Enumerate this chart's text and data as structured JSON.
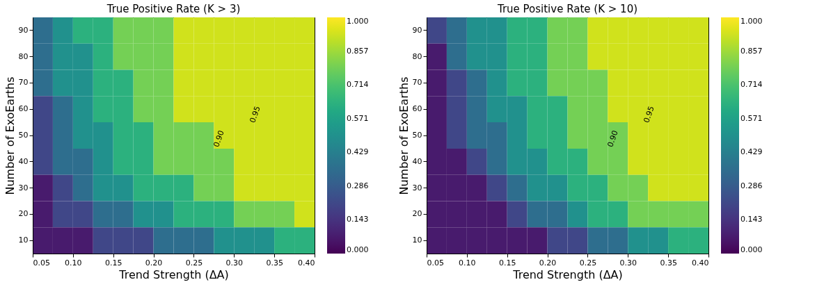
{
  "chart_data": [
    {
      "type": "heatmap",
      "title": "True Positive Rate (K > 3)",
      "xlabel": "Trend Strength (ΔA)",
      "ylabel": "Number of ExoEarths",
      "x": [
        0.0625,
        0.0875,
        0.1125,
        0.1375,
        0.1625,
        0.1875,
        0.2125,
        0.2375,
        0.2625,
        0.2875,
        0.3125,
        0.3375,
        0.3625,
        0.3875
      ],
      "y_categories": [
        "90",
        "80",
        "70",
        "60",
        "50",
        "40",
        "30",
        "20",
        "10"
      ],
      "cells": [
        [
          0.36,
          0.5,
          0.64,
          0.64,
          0.79,
          0.79,
          0.79,
          0.93,
          0.93,
          0.93,
          0.93,
          0.93,
          0.93,
          0.93
        ],
        [
          0.36,
          0.5,
          0.5,
          0.64,
          0.79,
          0.79,
          0.79,
          0.93,
          0.93,
          0.93,
          0.93,
          0.93,
          0.93,
          0.93
        ],
        [
          0.36,
          0.5,
          0.5,
          0.64,
          0.64,
          0.79,
          0.79,
          0.93,
          0.93,
          0.93,
          0.93,
          0.93,
          0.93,
          0.93
        ],
        [
          0.21,
          0.36,
          0.5,
          0.64,
          0.64,
          0.79,
          0.79,
          0.93,
          0.93,
          0.93,
          0.93,
          0.93,
          0.93,
          0.93
        ],
        [
          0.21,
          0.36,
          0.5,
          0.5,
          0.64,
          0.64,
          0.79,
          0.79,
          0.79,
          0.93,
          0.93,
          0.93,
          0.93,
          0.93
        ],
        [
          0.21,
          0.36,
          0.36,
          0.5,
          0.64,
          0.64,
          0.79,
          0.79,
          0.79,
          0.79,
          0.93,
          0.93,
          0.93,
          0.93
        ],
        [
          0.07,
          0.21,
          0.36,
          0.5,
          0.5,
          0.64,
          0.64,
          0.64,
          0.79,
          0.79,
          0.93,
          0.93,
          0.93,
          0.93
        ],
        [
          0.07,
          0.21,
          0.21,
          0.36,
          0.36,
          0.5,
          0.5,
          0.64,
          0.64,
          0.64,
          0.79,
          0.79,
          0.79,
          0.93
        ],
        [
          0.07,
          0.07,
          0.07,
          0.21,
          0.21,
          0.21,
          0.36,
          0.36,
          0.36,
          0.5,
          0.5,
          0.5,
          0.64,
          0.64
        ]
      ],
      "xlim": [
        0.05,
        0.4
      ],
      "xticks": [
        0.05,
        {
          "value": 0.1,
          "label": "0.10"
        },
        0.15,
        {
          "value": 0.2,
          "label": "0.20"
        },
        0.25,
        {
          "value": 0.3,
          "label": "0.30"
        },
        0.35,
        {
          "value": 0.4,
          "label": "0.40"
        }
      ],
      "clim": [
        0,
        1
      ],
      "cticks": [
        {
          "value": 0,
          "label": "0.000"
        },
        {
          "value": 0.142857,
          "label": "0.143"
        },
        {
          "value": 0.285714,
          "label": "0.286"
        },
        {
          "value": 0.428571,
          "label": "0.429"
        },
        {
          "value": 0.571429,
          "label": "0.571"
        },
        {
          "value": 0.714286,
          "label": "0.714"
        },
        {
          "value": 0.857143,
          "label": "0.857"
        },
        {
          "value": 1,
          "label": "1.000"
        }
      ],
      "annotations": [
        "0.90",
        "0.95"
      ]
    },
    {
      "type": "heatmap",
      "title": "True Positive Rate (K > 10)",
      "xlabel": "Trend Strength (ΔA)",
      "ylabel": "Number of ExoEarths",
      "x": [
        0.0625,
        0.0875,
        0.1125,
        0.1375,
        0.1625,
        0.1875,
        0.2125,
        0.2375,
        0.2625,
        0.2875,
        0.3125,
        0.3375,
        0.3625,
        0.3875
      ],
      "y_categories": [
        "90",
        "80",
        "70",
        "60",
        "50",
        "40",
        "30",
        "20",
        "10"
      ],
      "cells": [
        [
          0.21,
          0.36,
          0.5,
          0.5,
          0.64,
          0.64,
          0.79,
          0.79,
          0.93,
          0.93,
          0.93,
          0.93,
          0.93,
          0.93
        ],
        [
          0.07,
          0.36,
          0.5,
          0.5,
          0.64,
          0.64,
          0.79,
          0.79,
          0.93,
          0.93,
          0.93,
          0.93,
          0.93,
          0.93
        ],
        [
          0.07,
          0.21,
          0.36,
          0.5,
          0.64,
          0.64,
          0.79,
          0.79,
          0.79,
          0.93,
          0.93,
          0.93,
          0.93,
          0.93
        ],
        [
          0.07,
          0.21,
          0.36,
          0.5,
          0.5,
          0.64,
          0.64,
          0.79,
          0.79,
          0.93,
          0.93,
          0.93,
          0.93,
          0.93
        ],
        [
          0.07,
          0.21,
          0.36,
          0.36,
          0.5,
          0.64,
          0.64,
          0.79,
          0.79,
          0.79,
          0.93,
          0.93,
          0.93,
          0.93
        ],
        [
          0.07,
          0.07,
          0.21,
          0.36,
          0.5,
          0.5,
          0.64,
          0.64,
          0.79,
          0.79,
          0.93,
          0.93,
          0.93,
          0.93
        ],
        [
          0.07,
          0.07,
          0.07,
          0.21,
          0.36,
          0.5,
          0.5,
          0.64,
          0.64,
          0.79,
          0.79,
          0.93,
          0.93,
          0.93
        ],
        [
          0.07,
          0.07,
          0.07,
          0.07,
          0.21,
          0.36,
          0.36,
          0.5,
          0.64,
          0.64,
          0.79,
          0.79,
          0.79,
          0.79
        ],
        [
          0.07,
          0.07,
          0.07,
          0.07,
          0.07,
          0.07,
          0.21,
          0.21,
          0.36,
          0.36,
          0.5,
          0.5,
          0.64,
          0.64
        ]
      ],
      "xlim": [
        0.05,
        0.4
      ],
      "xticks": [
        0.05,
        {
          "value": 0.1,
          "label": "0.10"
        },
        0.15,
        {
          "value": 0.2,
          "label": "0.20"
        },
        0.25,
        {
          "value": 0.3,
          "label": "0.30"
        },
        0.35,
        {
          "value": 0.4,
          "label": "0.40"
        }
      ],
      "clim": [
        0,
        1
      ],
      "cticks": [
        {
          "value": 0,
          "label": "0.000"
        },
        {
          "value": 0.142857,
          "label": "0.143"
        },
        {
          "value": 0.285714,
          "label": "0.286"
        },
        {
          "value": 0.428571,
          "label": "0.429"
        },
        {
          "value": 0.571429,
          "label": "0.571"
        },
        {
          "value": 0.714286,
          "label": "0.714"
        },
        {
          "value": 0.857143,
          "label": "0.857"
        },
        {
          "value": 1,
          "label": "1.000"
        }
      ],
      "annotations": [
        "0.90",
        "0.95"
      ]
    }
  ]
}
